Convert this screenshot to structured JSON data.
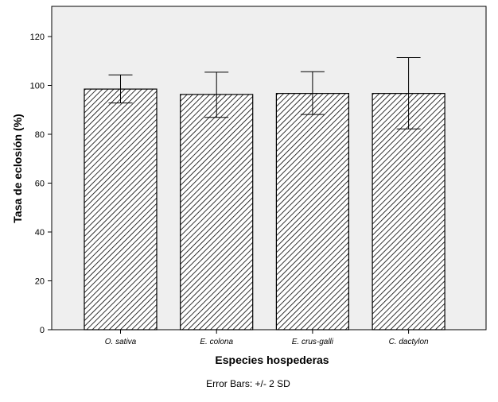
{
  "chart_data": {
    "type": "bar",
    "title": "",
    "xlabel": "Especies hospederas",
    "ylabel": "Tasa de eclosión (%)",
    "categories": [
      "O. sativa",
      "E. colona",
      "E. crus-galli",
      "C. dactylon"
    ],
    "values": [
      98.5,
      96.3,
      96.7,
      96.7
    ],
    "error_upper": [
      104.3,
      105.4,
      105.6,
      111.4
    ],
    "error_lower": [
      92.8,
      86.9,
      88.1,
      82.2
    ],
    "ylim": [
      0,
      133
    ],
    "yticks": [
      0,
      20,
      40,
      60,
      80,
      100,
      120
    ],
    "grid": false,
    "footnote": "Error Bars: +/- 2 SD",
    "colors": {
      "plot_bg": "#efefef",
      "bar_fill": "#ffffff",
      "hatch": "#000000"
    }
  }
}
